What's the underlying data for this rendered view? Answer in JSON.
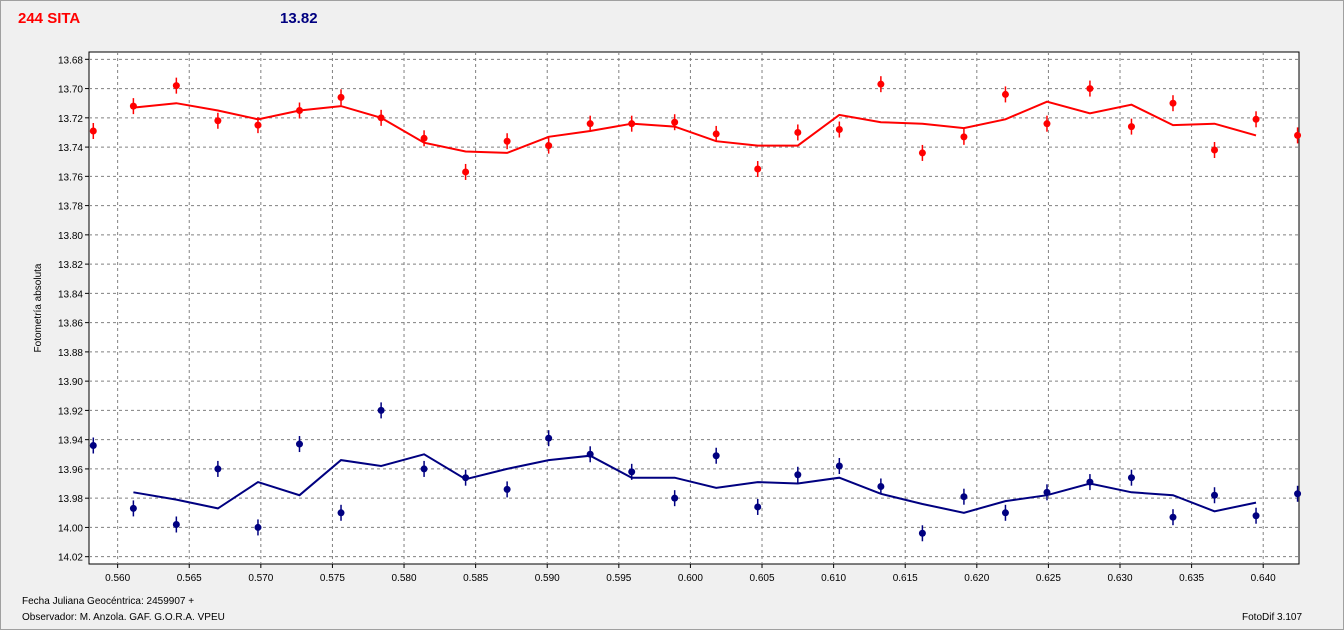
{
  "header": {
    "object_name": "244 SITA",
    "magnitude": "13.82"
  },
  "footer": {
    "fecha": "Fecha Juliana Geocéntrica: 2459907 +",
    "observador": "Observador:  M. Anzola. GAF. G.O.R.A. VPEU",
    "software": "FotoDif 3.107"
  },
  "colors": {
    "object": "#ff0000",
    "comparison": "#000080",
    "grid": "#808080",
    "plot_bg": "#ffffff",
    "window_bg": "#f0f0f0"
  },
  "chart_data": {
    "type": "scatter",
    "title": "",
    "xlabel": "",
    "ylabel": "Fotometría absoluta",
    "xlim": [
      0.558,
      0.6425
    ],
    "ylim": [
      14.025,
      13.675
    ],
    "y_inverted": true,
    "grid": true,
    "x_ticks": [
      "0.560",
      "0.565",
      "0.570",
      "0.575",
      "0.580",
      "0.585",
      "0.590",
      "0.595",
      "0.600",
      "0.605",
      "0.610",
      "0.615",
      "0.620",
      "0.625",
      "0.630",
      "0.635",
      "0.640"
    ],
    "x_tick_values": [
      0.56,
      0.565,
      0.57,
      0.575,
      0.58,
      0.585,
      0.59,
      0.595,
      0.6,
      0.605,
      0.61,
      0.615,
      0.62,
      0.625,
      0.63,
      0.635,
      0.64
    ],
    "y_ticks": [
      "13.68",
      "13.70",
      "13.72",
      "13.74",
      "13.76",
      "13.78",
      "13.80",
      "13.82",
      "13.84",
      "13.86",
      "13.88",
      "13.90",
      "13.92",
      "13.94",
      "13.96",
      "13.98",
      "14.00",
      "14.02"
    ],
    "y_tick_values": [
      13.68,
      13.7,
      13.72,
      13.74,
      13.76,
      13.78,
      13.8,
      13.82,
      13.84,
      13.86,
      13.88,
      13.9,
      13.92,
      13.94,
      13.96,
      13.98,
      14.0,
      14.02
    ],
    "series": [
      {
        "color": "#ff0000",
        "x": [
          0.5583,
          0.5611,
          0.5641,
          0.567,
          0.5698,
          0.5727,
          0.5756,
          0.5784,
          0.5814,
          0.5843,
          0.5872,
          0.5901,
          0.593,
          0.5959,
          0.5989,
          0.6018,
          0.6047,
          0.6075,
          0.6104,
          0.6133,
          0.6162,
          0.6191,
          0.622,
          0.6249,
          0.6279,
          0.6308,
          0.6337,
          0.6366,
          0.6395,
          0.6424
        ],
        "y": [
          13.729,
          13.712,
          13.698,
          13.722,
          13.725,
          13.715,
          13.706,
          13.72,
          13.734,
          13.757,
          13.736,
          13.739,
          13.724,
          13.724,
          13.723,
          13.731,
          13.755,
          13.73,
          13.728,
          13.697,
          13.744,
          13.733,
          13.704,
          13.724,
          13.7,
          13.726,
          13.71,
          13.742,
          13.721,
          13.732
        ],
        "fit_x": [
          0.5611,
          0.5641,
          0.567,
          0.5698,
          0.5727,
          0.5756,
          0.5784,
          0.5814,
          0.5843,
          0.5872,
          0.5901,
          0.593,
          0.5959,
          0.5989,
          0.6018,
          0.6047,
          0.6075,
          0.6104,
          0.6133,
          0.6162,
          0.6191,
          0.622,
          0.6249,
          0.6279,
          0.6308,
          0.6337,
          0.6366,
          0.6395
        ],
        "fit_y": [
          13.713,
          13.71,
          13.715,
          13.721,
          13.715,
          13.712,
          13.72,
          13.737,
          13.743,
          13.744,
          13.733,
          13.729,
          13.724,
          13.726,
          13.736,
          13.739,
          13.739,
          13.718,
          13.723,
          13.724,
          13.727,
          13.721,
          13.709,
          13.717,
          13.711,
          13.725,
          13.724,
          13.732
        ]
      },
      {
        "color": "#000080",
        "x": [
          0.5583,
          0.5611,
          0.5641,
          0.567,
          0.5698,
          0.5727,
          0.5756,
          0.5784,
          0.5814,
          0.5843,
          0.5872,
          0.5901,
          0.593,
          0.5959,
          0.5989,
          0.6018,
          0.6047,
          0.6075,
          0.6104,
          0.6133,
          0.6162,
          0.6191,
          0.622,
          0.6249,
          0.6279,
          0.6308,
          0.6337,
          0.6366,
          0.6395,
          0.6424
        ],
        "y": [
          13.944,
          13.987,
          13.998,
          13.96,
          14.0,
          13.943,
          13.99,
          13.92,
          13.96,
          13.966,
          13.974,
          13.939,
          13.95,
          13.962,
          13.98,
          13.951,
          13.986,
          13.964,
          13.958,
          13.972,
          14.004,
          13.979,
          13.99,
          13.976,
          13.969,
          13.966,
          13.993,
          13.978,
          13.992,
          13.977
        ],
        "fit_x": [
          0.5611,
          0.5641,
          0.567,
          0.5698,
          0.5727,
          0.5756,
          0.5784,
          0.5814,
          0.5843,
          0.5872,
          0.5901,
          0.593,
          0.5959,
          0.5989,
          0.6018,
          0.6047,
          0.6075,
          0.6104,
          0.6133,
          0.6162,
          0.6191,
          0.622,
          0.6249,
          0.6279,
          0.6308,
          0.6337,
          0.6366,
          0.6395
        ],
        "fit_y": [
          13.976,
          13.981,
          13.987,
          13.969,
          13.978,
          13.954,
          13.958,
          13.95,
          13.967,
          13.96,
          13.954,
          13.951,
          13.966,
          13.966,
          13.973,
          13.969,
          13.97,
          13.966,
          13.977,
          13.984,
          13.99,
          13.982,
          13.978,
          13.97,
          13.976,
          13.978,
          13.989,
          13.983
        ]
      }
    ]
  }
}
